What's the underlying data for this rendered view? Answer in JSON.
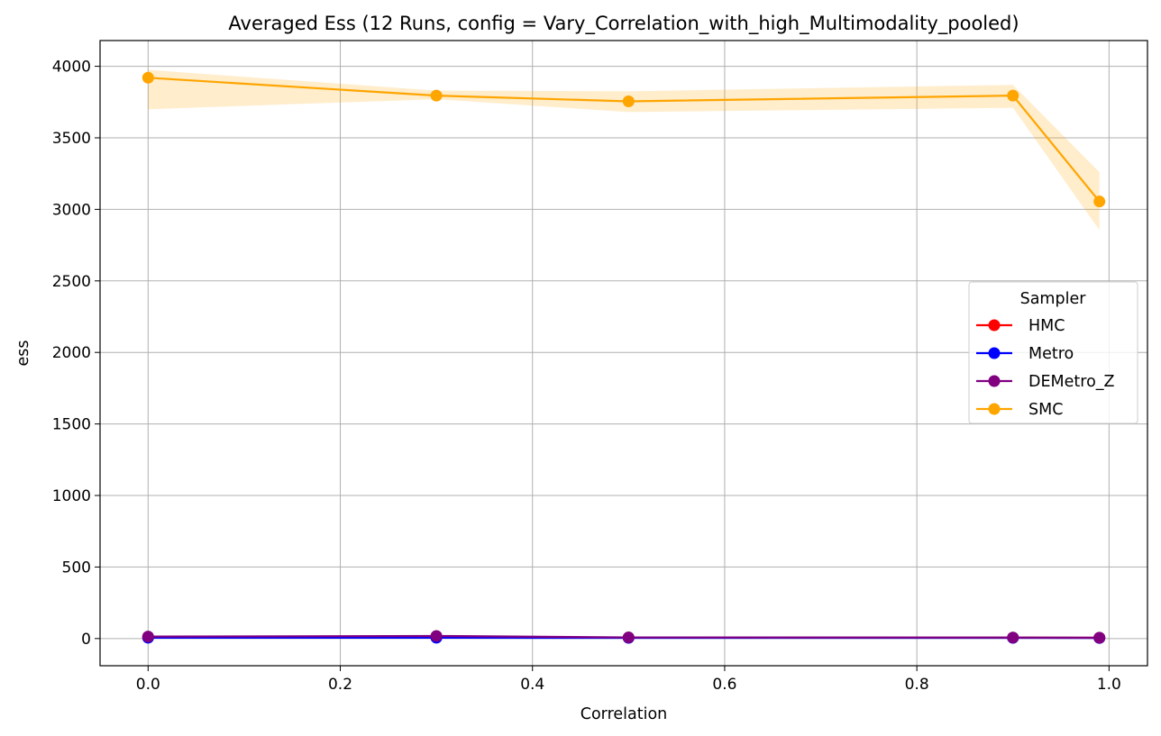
{
  "chart_data": {
    "type": "line",
    "title": "Averaged Ess (12 Runs, config = Vary_Correlation_with_high_Multimodality_pooled)",
    "xlabel": "Correlation",
    "ylabel": "ess",
    "xlim": [
      -0.05,
      1.04
    ],
    "ylim": [
      -190,
      4180
    ],
    "xticks": [
      0.0,
      0.2,
      0.4,
      0.6,
      0.8,
      1.0
    ],
    "xtick_labels": [
      "0.0",
      "0.2",
      "0.4",
      "0.6",
      "0.8",
      "1.0"
    ],
    "yticks": [
      0,
      500,
      1000,
      1500,
      2000,
      2500,
      3000,
      3500,
      4000
    ],
    "ytick_labels": [
      "0",
      "500",
      "1000",
      "1500",
      "2000",
      "2500",
      "3000",
      "3500",
      "4000"
    ],
    "grid": true,
    "legend": {
      "title": "Sampler",
      "placement": "center-right"
    },
    "x": [
      0.0,
      0.3,
      0.5,
      0.9,
      0.99
    ],
    "series": [
      {
        "name": "HMC",
        "color": "#ff0000",
        "values": [
          8,
          8,
          6,
          6,
          5
        ],
        "band_low": [
          6,
          6,
          4,
          4,
          3
        ],
        "band_high": [
          10,
          10,
          8,
          8,
          7
        ]
      },
      {
        "name": "Metro",
        "color": "#0000ff",
        "values": [
          6,
          6,
          5,
          5,
          4
        ],
        "band_low": [
          4,
          4,
          3,
          3,
          2
        ],
        "band_high": [
          8,
          8,
          7,
          7,
          6
        ]
      },
      {
        "name": "DEMetro_Z",
        "color": "#800080",
        "values": [
          14,
          18,
          8,
          7,
          6
        ],
        "band_low": [
          10,
          12,
          5,
          5,
          4
        ],
        "band_high": [
          18,
          24,
          11,
          9,
          8
        ]
      },
      {
        "name": "SMC",
        "color": "#ffa500",
        "values": [
          3920,
          3795,
          3755,
          3795,
          3055
        ],
        "band_low": [
          3700,
          3770,
          3680,
          3710,
          2855
        ],
        "band_high": [
          3975,
          3830,
          3825,
          3870,
          3260
        ]
      }
    ]
  }
}
